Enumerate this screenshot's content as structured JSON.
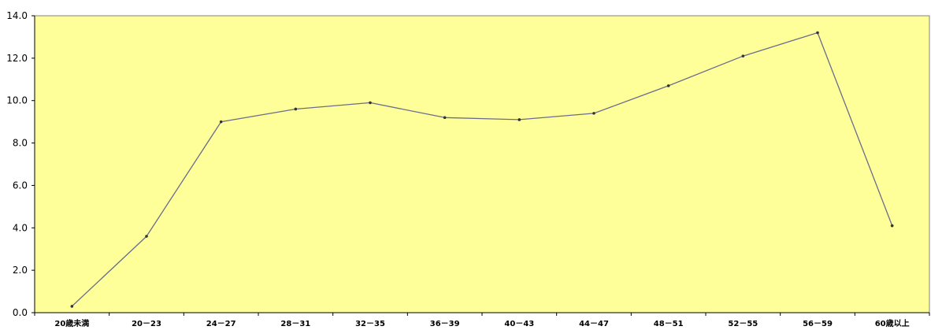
{
  "colors": {
    "plot_background": "#FFFF99",
    "plot_border": "#808080",
    "line": "#6B6B8F",
    "marker": "#333333",
    "axis": "#000000"
  },
  "chart_data": {
    "type": "line",
    "title": "",
    "xlabel": "",
    "ylabel": "",
    "grid": false,
    "legend": "none",
    "ylim": [
      0,
      14
    ],
    "y_ticks": [
      "0.0",
      "2.0",
      "4.0",
      "6.0",
      "8.0",
      "10.0",
      "12.0",
      "14.0"
    ],
    "categories": [
      "20歳未満",
      "20－23",
      "24－27",
      "28－31",
      "32－35",
      "36－39",
      "40－43",
      "44－47",
      "48－51",
      "52－55",
      "56－59",
      "60歳以上"
    ],
    "series": [
      {
        "values": [
          0.3,
          3.6,
          9.0,
          9.6,
          9.9,
          9.2,
          9.1,
          9.4,
          10.7,
          12.1,
          13.2,
          4.1
        ]
      }
    ]
  }
}
